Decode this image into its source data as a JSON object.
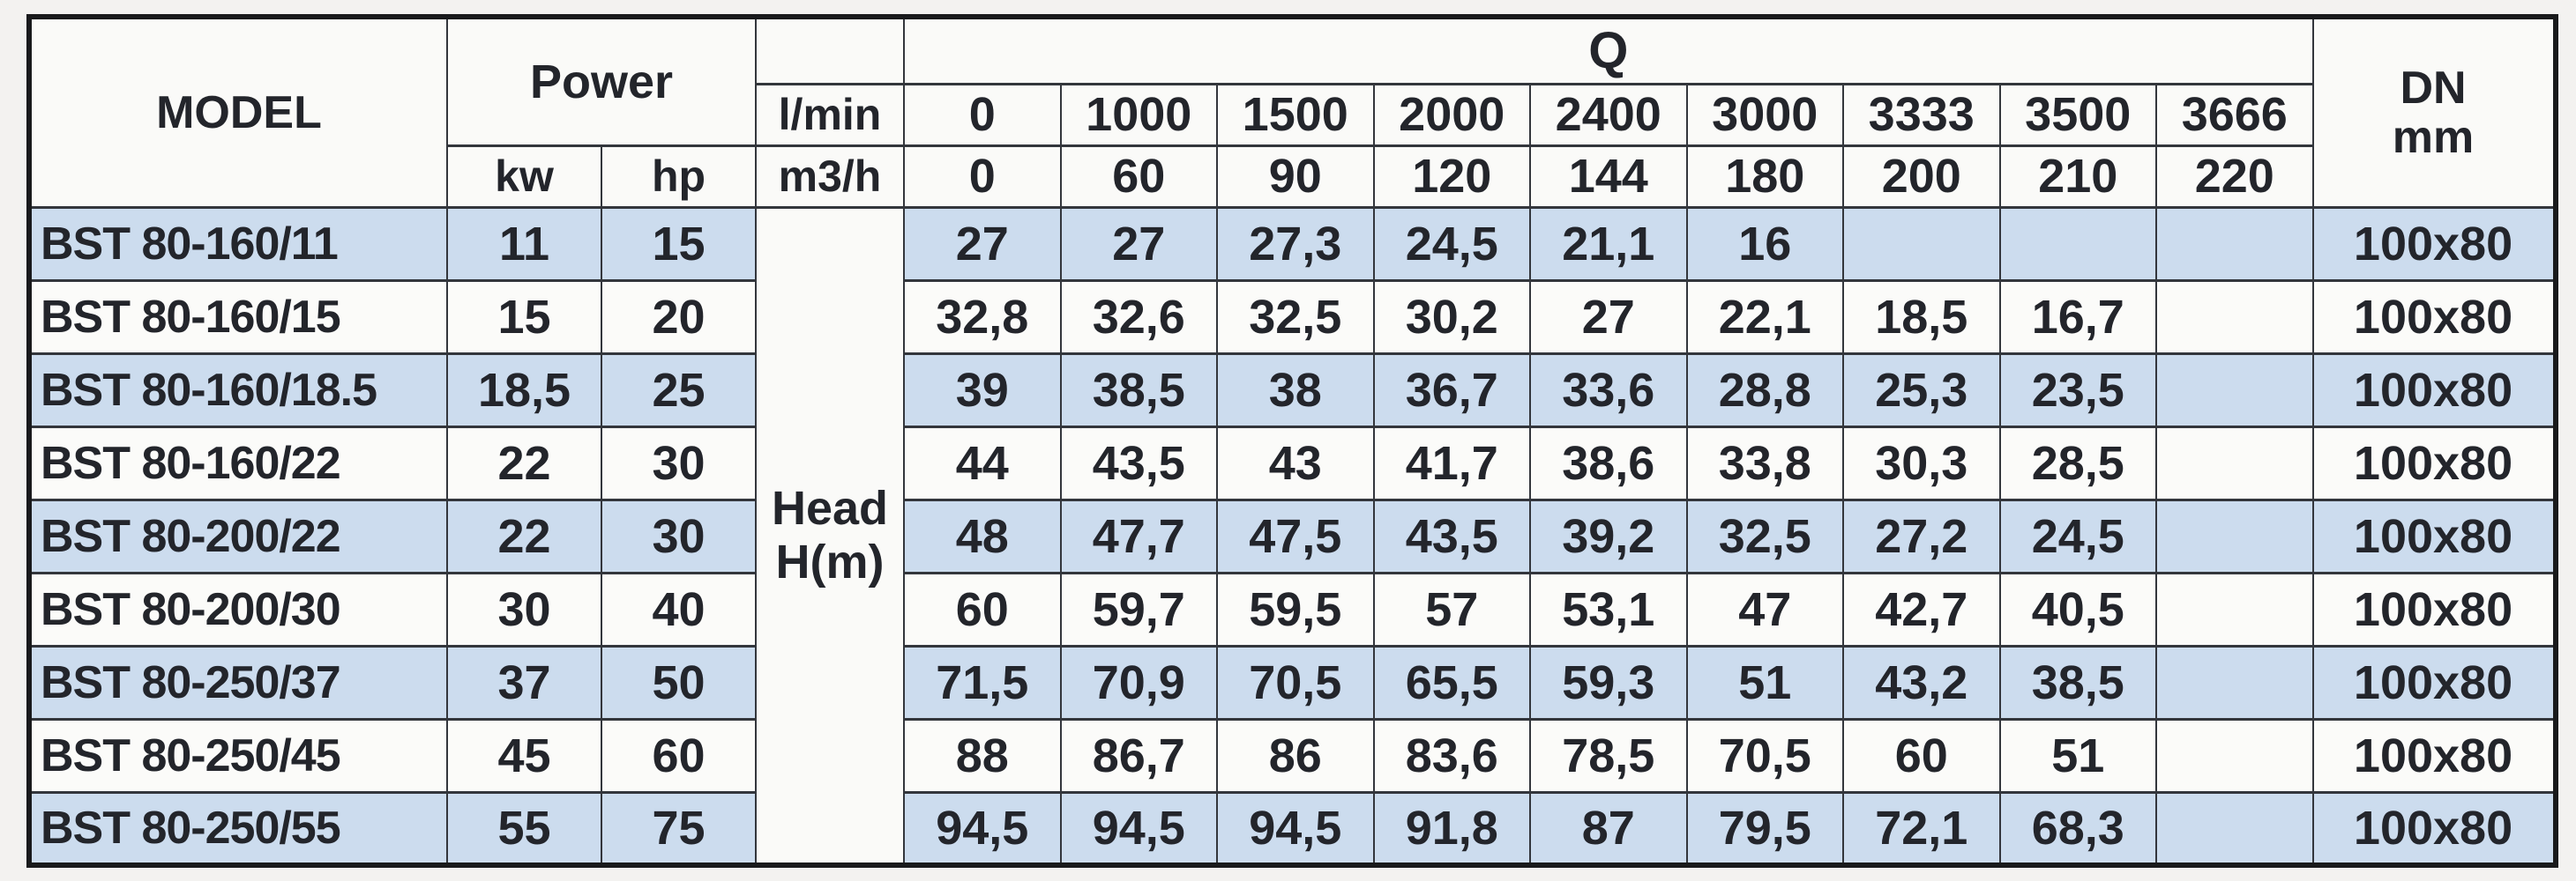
{
  "page": {
    "background": "#f3f2f0"
  },
  "table": {
    "headers": {
      "model": "MODEL",
      "power": "Power",
      "kw": "kw",
      "hp": "hp",
      "q": "Q",
      "flow_unit_lmin": "l/min",
      "flow_unit_m3h": "m3/h",
      "lmin_values": [
        "0",
        "1000",
        "1500",
        "2000",
        "2400",
        "3000",
        "3333",
        "3500",
        "3666"
      ],
      "m3h_values": [
        "0",
        "60",
        "90",
        "120",
        "144",
        "180",
        "200",
        "210",
        "220"
      ],
      "head_label_line1": "Head",
      "head_label_line2": "H(m)",
      "dn_line1": "DN",
      "dn_line2": "mm"
    },
    "rows": [
      {
        "model": "BST 80-160/11",
        "kw": "11",
        "hp": "15",
        "head": [
          "27",
          "27",
          "27,3",
          "24,5",
          "21,1",
          "16",
          "",
          "",
          ""
        ],
        "dn": "100x80"
      },
      {
        "model": "BST 80-160/15",
        "kw": "15",
        "hp": "20",
        "head": [
          "32,8",
          "32,6",
          "32,5",
          "30,2",
          "27",
          "22,1",
          "18,5",
          "16,7",
          ""
        ],
        "dn": "100x80"
      },
      {
        "model": "BST 80-160/18.5",
        "kw": "18,5",
        "hp": "25",
        "head": [
          "39",
          "38,5",
          "38",
          "36,7",
          "33,6",
          "28,8",
          "25,3",
          "23,5",
          ""
        ],
        "dn": "100x80"
      },
      {
        "model": "BST 80-160/22",
        "kw": "22",
        "hp": "30",
        "head": [
          "44",
          "43,5",
          "43",
          "41,7",
          "38,6",
          "33,8",
          "30,3",
          "28,5",
          ""
        ],
        "dn": "100x80"
      },
      {
        "model": "BST 80-200/22",
        "kw": "22",
        "hp": "30",
        "head": [
          "48",
          "47,7",
          "47,5",
          "43,5",
          "39,2",
          "32,5",
          "27,2",
          "24,5",
          ""
        ],
        "dn": "100x80"
      },
      {
        "model": "BST 80-200/30",
        "kw": "30",
        "hp": "40",
        "head": [
          "60",
          "59,7",
          "59,5",
          "57",
          "53,1",
          "47",
          "42,7",
          "40,5",
          ""
        ],
        "dn": "100x80"
      },
      {
        "model": "BST 80-250/37",
        "kw": "37",
        "hp": "50",
        "head": [
          "71,5",
          "70,9",
          "70,5",
          "65,5",
          "59,3",
          "51",
          "43,2",
          "38,5",
          ""
        ],
        "dn": "100x80"
      },
      {
        "model": "BST 80-250/45",
        "kw": "45",
        "hp": "60",
        "head": [
          "88",
          "86,7",
          "86",
          "83,6",
          "78,5",
          "70,5",
          "60",
          "51",
          ""
        ],
        "dn": "100x80"
      },
      {
        "model": "BST 80-250/55",
        "kw": "55",
        "hp": "75",
        "head": [
          "94,5",
          "94,5",
          "94,5",
          "91,8",
          "87",
          "79,5",
          "72,1",
          "68,3",
          ""
        ],
        "dn": "100x80"
      }
    ],
    "colors": {
      "row_blue": "#ccdcee",
      "row_white": "#fbfbf9",
      "text": "#23252b",
      "border": "#33363c",
      "header_bg": "#fafaf8"
    }
  },
  "chart_data": {
    "type": "table",
    "title": "BST 80 pump performance table: Head H(m) vs flow rate Q",
    "q_units": [
      "l/min",
      "m3/h"
    ],
    "q_lmin": [
      0,
      1000,
      1500,
      2000,
      2400,
      3000,
      3333,
      3500,
      3666
    ],
    "q_m3h": [
      0,
      60,
      90,
      120,
      144,
      180,
      200,
      210,
      220
    ],
    "value_label": "Head H(m)",
    "series": [
      {
        "name": "BST 80-160/11",
        "power_kw": 11,
        "power_hp": 15,
        "head_m": [
          27,
          27,
          27.3,
          24.5,
          21.1,
          16,
          null,
          null,
          null
        ],
        "dn_mm": "100x80"
      },
      {
        "name": "BST 80-160/15",
        "power_kw": 15,
        "power_hp": 20,
        "head_m": [
          32.8,
          32.6,
          32.5,
          30.2,
          27,
          22.1,
          18.5,
          16.7,
          null
        ],
        "dn_mm": "100x80"
      },
      {
        "name": "BST 80-160/18.5",
        "power_kw": 18.5,
        "power_hp": 25,
        "head_m": [
          39,
          38.5,
          38,
          36.7,
          33.6,
          28.8,
          25.3,
          23.5,
          null
        ],
        "dn_mm": "100x80"
      },
      {
        "name": "BST 80-160/22",
        "power_kw": 22,
        "power_hp": 30,
        "head_m": [
          44,
          43.5,
          43,
          41.7,
          38.6,
          33.8,
          30.3,
          28.5,
          null
        ],
        "dn_mm": "100x80"
      },
      {
        "name": "BST 80-200/22",
        "power_kw": 22,
        "power_hp": 30,
        "head_m": [
          48,
          47.7,
          47.5,
          43.5,
          39.2,
          32.5,
          27.2,
          24.5,
          null
        ],
        "dn_mm": "100x80"
      },
      {
        "name": "BST 80-200/30",
        "power_kw": 30,
        "power_hp": 40,
        "head_m": [
          60,
          59.7,
          59.5,
          57,
          53.1,
          47,
          42.7,
          40.5,
          null
        ],
        "dn_mm": "100x80"
      },
      {
        "name": "BST 80-250/37",
        "power_kw": 37,
        "power_hp": 50,
        "head_m": [
          71.5,
          70.9,
          70.5,
          65.5,
          59.3,
          51,
          43.2,
          38.5,
          null
        ],
        "dn_mm": "100x80"
      },
      {
        "name": "BST 80-250/45",
        "power_kw": 45,
        "power_hp": 60,
        "head_m": [
          88,
          86.7,
          86,
          83.6,
          78.5,
          70.5,
          60,
          51,
          null
        ],
        "dn_mm": "100x80"
      },
      {
        "name": "BST 80-250/55",
        "power_kw": 55,
        "power_hp": 75,
        "head_m": [
          94.5,
          94.5,
          94.5,
          91.8,
          87,
          79.5,
          72.1,
          68.3,
          null
        ],
        "dn_mm": "100x80"
      }
    ]
  }
}
